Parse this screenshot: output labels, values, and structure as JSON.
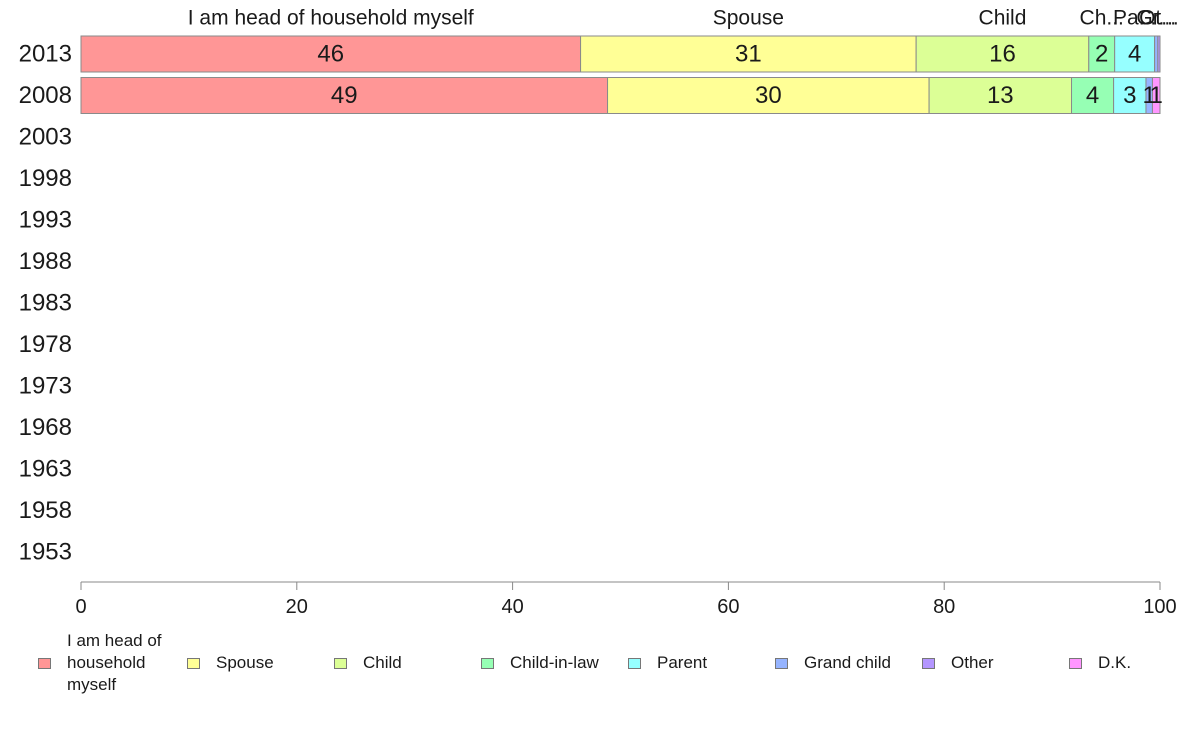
{
  "chart_data": {
    "type": "bar",
    "orientation": "horizontal",
    "stacked": true,
    "categories": [
      "2013",
      "2008",
      "2003",
      "1998",
      "1993",
      "1988",
      "1983",
      "1978",
      "1973",
      "1968",
      "1963",
      "1958",
      "1953"
    ],
    "series": [
      {
        "name": "I am head of household myself",
        "values": [
          46.3,
          48.8,
          null,
          null,
          null,
          null,
          null,
          null,
          null,
          null,
          null,
          null,
          null
        ],
        "color": "#ff9696"
      },
      {
        "name": "Spouse",
        "values": [
          31.1,
          29.8,
          null,
          null,
          null,
          null,
          null,
          null,
          null,
          null,
          null,
          null,
          null
        ],
        "color": "#ffff96"
      },
      {
        "name": "Child",
        "values": [
          16.0,
          13.2,
          null,
          null,
          null,
          null,
          null,
          null,
          null,
          null,
          null,
          null,
          null
        ],
        "color": "#dcff96"
      },
      {
        "name": "Child-in-law",
        "values": [
          2.4,
          3.9,
          null,
          null,
          null,
          null,
          null,
          null,
          null,
          null,
          null,
          null,
          null
        ],
        "color": "#96ffb4"
      },
      {
        "name": "Parent",
        "values": [
          3.7,
          3.0,
          null,
          null,
          null,
          null,
          null,
          null,
          null,
          null,
          null,
          null,
          null
        ],
        "color": "#96ffff"
      },
      {
        "name": "Grand child",
        "values": [
          0.3,
          0.6,
          null,
          null,
          null,
          null,
          null,
          null,
          null,
          null,
          null,
          null,
          null
        ],
        "color": "#96b4ff"
      },
      {
        "name": "Other",
        "values": [
          0.2,
          0.0,
          null,
          null,
          null,
          null,
          null,
          null,
          null,
          null,
          null,
          null,
          null
        ],
        "color": "#b496ff"
      },
      {
        "name": "D.K.",
        "values": [
          0.0,
          0.7,
          null,
          null,
          null,
          null,
          null,
          null,
          null,
          null,
          null,
          null,
          null
        ],
        "color": "#ff96ff"
      }
    ],
    "data_labels": [
      [
        "46",
        "31",
        "16",
        "2",
        "4",
        "",
        "",
        ""
      ],
      [
        "49",
        "30",
        "13",
        "4",
        "3",
        "1",
        "",
        "1"
      ]
    ],
    "top_labels": [
      "I am head of household myself",
      "Spouse",
      "Child",
      "Ch...",
      "Pa...",
      "Gr...",
      "Ot...",
      ""
    ],
    "xlim": [
      0,
      100
    ],
    "xticks": [
      0,
      20,
      40,
      60,
      80,
      100
    ],
    "xlabel": "",
    "ylabel": "",
    "title": "",
    "grid": false,
    "legend_position": "bottom"
  },
  "legend": [
    {
      "label": "I am head of household myself",
      "color": "#ff9696"
    },
    {
      "label": "Spouse",
      "color": "#ffff96"
    },
    {
      "label": "Child",
      "color": "#dcff96"
    },
    {
      "label": "Child-in-law",
      "color": "#96ffb4"
    },
    {
      "label": "Parent",
      "color": "#96ffff"
    },
    {
      "label": "Grand child",
      "color": "#96b4ff"
    },
    {
      "label": "Other",
      "color": "#b496ff"
    },
    {
      "label": "D.K.",
      "color": "#ff96ff"
    }
  ]
}
